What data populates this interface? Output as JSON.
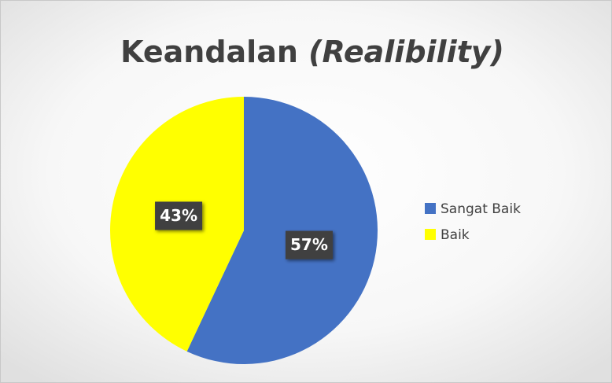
{
  "chart_data": {
    "type": "pie",
    "title": [
      "Keandalan",
      "(Realibility)"
    ],
    "categories": [
      "Sangat Baik",
      "Baik"
    ],
    "values": [
      57,
      43
    ],
    "value_labels": [
      "57%",
      "43%"
    ],
    "colors": [
      "#4472c4",
      "#ffff00"
    ],
    "legend": "right"
  }
}
